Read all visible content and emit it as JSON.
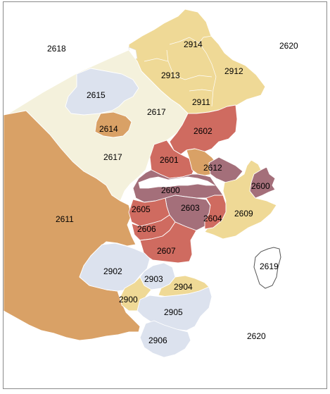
{
  "colors": {
    "background": "#ffffff",
    "frame": "#8a8a8a",
    "tan": "#d9a166",
    "cream": "#f4f1dc",
    "wheat": "#efd996",
    "light_blue": "#dce2ee",
    "salmon_red": "#cf6b60",
    "mauve": "#a46f7a",
    "outline_grey": "#555555"
  },
  "map": {
    "labels": {
      "2618": "2618",
      "2620_ne": "2620",
      "2914": "2914",
      "2913": "2913",
      "2912": "2912",
      "2911": "2911",
      "2615": "2615",
      "2617_n": "2617",
      "2614": "2614",
      "2602": "2602",
      "2601": "2601",
      "2617_s": "2617",
      "2612": "2612",
      "2600_w": "2600",
      "2600_e": "2600",
      "2611": "2611",
      "2605": "2605",
      "2603": "2603",
      "2604": "2604",
      "2609": "2609",
      "2606": "2606",
      "2607": "2607",
      "2619": "2619",
      "2902": "2902",
      "2903": "2903",
      "2904": "2904",
      "2900": "2900",
      "2905": "2905",
      "2620_se": "2620",
      "2906": "2906"
    }
  }
}
